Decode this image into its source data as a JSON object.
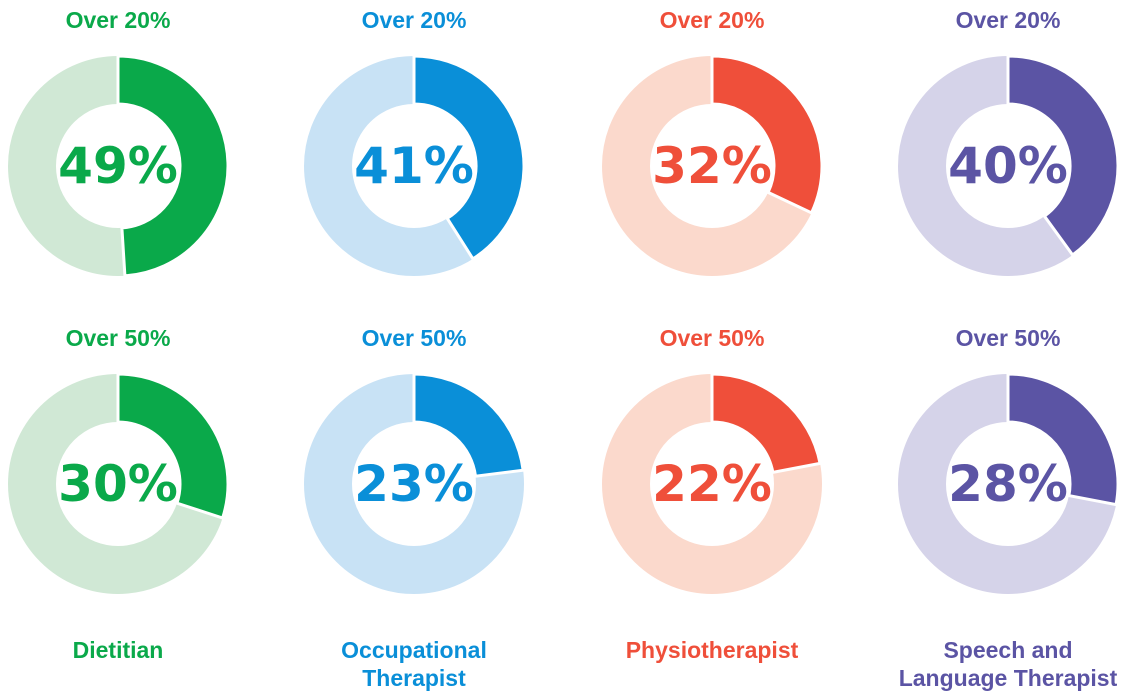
{
  "chart_data": [
    {
      "type": "donut",
      "title": "Over 20%",
      "values": [
        49
      ],
      "value_labels": [
        "49%"
      ],
      "color": "#0aa94a",
      "track_color": "#d0e8d5"
    },
    {
      "type": "donut",
      "title": "Over 20%",
      "values": [
        41
      ],
      "value_labels": [
        "41%"
      ],
      "color": "#0a8fd8",
      "track_color": "#c8e2f5"
    },
    {
      "type": "donut",
      "title": "Over 20%",
      "values": [
        32
      ],
      "value_labels": [
        "32%"
      ],
      "color": "#ef4f3a",
      "track_color": "#fbd9cc"
    },
    {
      "type": "donut",
      "title": "Over 20%",
      "values": [
        40
      ],
      "value_labels": [
        "40%"
      ],
      "color": "#5b54a4",
      "track_color": "#d5d3e9"
    },
    {
      "type": "donut",
      "title": "Over 50%",
      "values": [
        30
      ],
      "value_labels": [
        "30%"
      ],
      "color": "#0aa94a",
      "track_color": "#d0e8d5"
    },
    {
      "type": "donut",
      "title": "Over 50%",
      "values": [
        23
      ],
      "value_labels": [
        "23%"
      ],
      "color": "#0a8fd8",
      "track_color": "#c8e2f5"
    },
    {
      "type": "donut",
      "title": "Over 50%",
      "values": [
        22
      ],
      "value_labels": [
        "22%"
      ],
      "color": "#ef4f3a",
      "track_color": "#fbd9cc"
    },
    {
      "type": "donut",
      "title": "Over 50%",
      "values": [
        28
      ],
      "value_labels": [
        "28%"
      ],
      "color": "#5b54a4",
      "track_color": "#d5d3e9"
    }
  ],
  "professions": [
    "Dietitian",
    "Occupational Therapist",
    "Physiotherapist",
    "Speech and Language Therapist"
  ]
}
